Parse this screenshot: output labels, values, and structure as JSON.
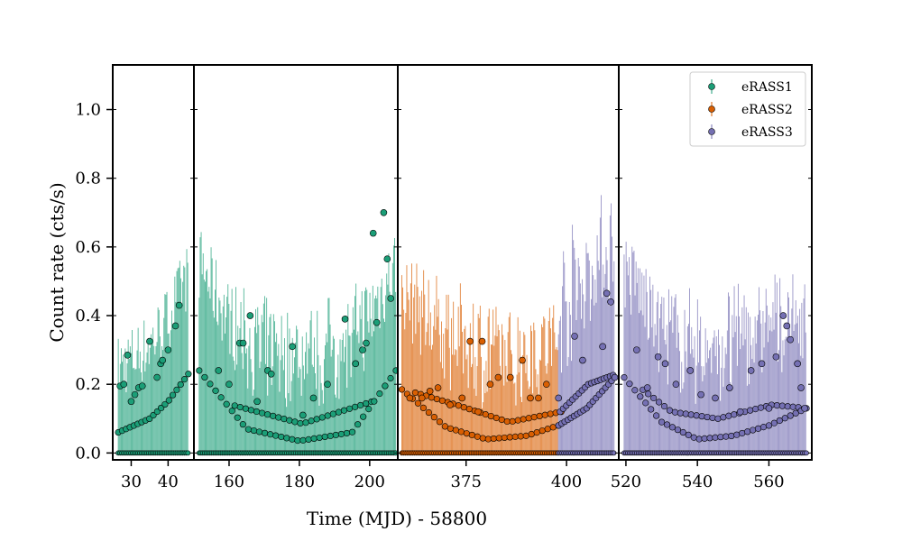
{
  "chart_data": {
    "type": "scatter",
    "xlabel": "Time (MJD) - 58800",
    "ylabel": "Count rate (cts/s)",
    "ylim": [
      -0.02,
      1.13
    ],
    "yticks": [
      0.0,
      0.2,
      0.4,
      0.6,
      0.8,
      1.0
    ],
    "ytick_labels": [
      "0.0",
      "0.2",
      "0.4",
      "0.6",
      "0.8",
      "1.0"
    ],
    "legend_position": "top-right",
    "colors": {
      "eRASS1": "#1b9e77",
      "eRASS2": "#d95f02",
      "eRASS3": "#7570b3"
    },
    "series": [
      {
        "name": "eRASS1"
      },
      {
        "name": "eRASS2"
      },
      {
        "name": "eRASS3"
      }
    ],
    "panels": [
      {
        "xlim": [
          25,
          47
        ],
        "xticks": [
          30,
          40
        ],
        "segments": [
          {
            "series": "eRASS1",
            "start": 26.5,
            "end": 45.5,
            "lower": [
              [
                26.5,
                0.06
              ],
              [
                35,
                0.1
              ],
              [
                40,
                0.15
              ],
              [
                45.5,
                0.23
              ]
            ],
            "upper": [
              [
                26.5,
                0.06
              ],
              [
                35,
                0.1
              ],
              [
                40,
                0.15
              ],
              [
                45.5,
                0.23
              ]
            ],
            "spread": 0.18
          }
        ],
        "highlights": [
          {
            "series": "eRASS1",
            "points": [
              [
                27,
                0.195
              ],
              [
                28,
                0.2
              ],
              [
                29,
                0.285
              ],
              [
                30,
                0.15
              ],
              [
                31,
                0.17
              ],
              [
                32,
                0.19
              ],
              [
                33,
                0.195
              ],
              [
                35,
                0.325
              ],
              [
                37,
                0.22
              ],
              [
                38,
                0.26
              ],
              [
                38.5,
                0.27
              ],
              [
                40,
                0.3
              ],
              [
                42,
                0.37
              ],
              [
                43,
                0.43
              ]
            ]
          }
        ]
      },
      {
        "xlim": [
          150,
          208
        ],
        "xticks": [
          160,
          180,
          200
        ],
        "segments": [
          {
            "series": "eRASS1",
            "start": 151.5,
            "end": 207.5,
            "lower": [
              [
                151.5,
                0.24
              ],
              [
                165,
                0.07
              ],
              [
                180,
                0.035
              ],
              [
                195,
                0.06
              ],
              [
                207.5,
                0.24
              ]
            ],
            "upper": [
              [
                151.5,
                0.24
              ],
              [
                160,
                0.14
              ],
              [
                180,
                0.085
              ],
              [
                200,
                0.15
              ],
              [
                207.5,
                0.24
              ]
            ],
            "spread": 0.2
          }
        ],
        "highlights": [
          {
            "series": "eRASS1",
            "points": [
              [
                157,
                0.24
              ],
              [
                160,
                0.2
              ],
              [
                163,
                0.32
              ],
              [
                164,
                0.32
              ],
              [
                166,
                0.4
              ],
              [
                168,
                0.15
              ],
              [
                171,
                0.24
              ],
              [
                172,
                0.23
              ],
              [
                178,
                0.31
              ],
              [
                181,
                0.11
              ],
              [
                184,
                0.16
              ],
              [
                188,
                0.2
              ],
              [
                193,
                0.39
              ],
              [
                196,
                0.26
              ],
              [
                198,
                0.3
              ],
              [
                199,
                0.32
              ],
              [
                201,
                0.64
              ],
              [
                202,
                0.38
              ],
              [
                204,
                0.7
              ],
              [
                205,
                0.565
              ],
              [
                206,
                0.45
              ]
            ]
          }
        ]
      },
      {
        "xlim": [
          358,
          413
        ],
        "xticks": [
          375,
          400
        ],
        "segments": [
          {
            "series": "eRASS2",
            "start": 359,
            "end": 398,
            "lower": [
              [
                359,
                0.185
              ],
              [
                370,
                0.075
              ],
              [
                380,
                0.04
              ],
              [
                390,
                0.05
              ],
              [
                398,
                0.08
              ]
            ],
            "upper": [
              [
                359,
                0.185
              ],
              [
                372,
                0.14
              ],
              [
                385,
                0.09
              ],
              [
                398,
                0.12
              ]
            ],
            "spread": 0.2
          },
          {
            "series": "eRASS3",
            "start": 398,
            "end": 412,
            "lower": [
              [
                398,
                0.08
              ],
              [
                405,
                0.13
              ],
              [
                412,
                0.22
              ]
            ],
            "upper": [
              [
                398,
                0.12
              ],
              [
                405,
                0.2
              ],
              [
                412,
                0.23
              ]
            ],
            "spread": 0.3
          }
        ],
        "highlights": [
          {
            "series": "eRASS2",
            "points": [
              [
                361,
                0.16
              ],
              [
                364,
                0.16
              ],
              [
                366,
                0.18
              ],
              [
                368,
                0.19
              ],
              [
                371,
                0.14
              ],
              [
                374,
                0.16
              ],
              [
                376,
                0.325
              ],
              [
                378,
                0.12
              ],
              [
                379,
                0.325
              ],
              [
                381,
                0.2
              ],
              [
                383,
                0.22
              ],
              [
                386,
                0.22
              ],
              [
                389,
                0.27
              ],
              [
                391,
                0.16
              ],
              [
                393,
                0.16
              ],
              [
                395,
                0.2
              ]
            ]
          },
          {
            "series": "eRASS3",
            "points": [
              [
                398,
                0.16
              ],
              [
                402,
                0.34
              ],
              [
                404,
                0.27
              ],
              [
                409,
                0.31
              ],
              [
                410,
                0.465
              ],
              [
                411,
                0.44
              ],
              [
                412,
                0.22
              ]
            ]
          }
        ]
      },
      {
        "xlim": [
          518,
          572
        ],
        "xticks": [
          520,
          540,
          560
        ],
        "segments": [
          {
            "series": "eRASS3",
            "start": 519.5,
            "end": 570.5,
            "lower": [
              [
                519.5,
                0.22
              ],
              [
                530,
                0.09
              ],
              [
                540,
                0.04
              ],
              [
                550,
                0.05
              ],
              [
                560,
                0.08
              ],
              [
                570.5,
                0.13
              ]
            ],
            "upper": [
              [
                519.5,
                0.22
              ],
              [
                532,
                0.12
              ],
              [
                545,
                0.1
              ],
              [
                560,
                0.14
              ],
              [
                570.5,
                0.13
              ]
            ],
            "spread": 0.22
          }
        ],
        "highlights": [
          {
            "series": "eRASS3",
            "points": [
              [
                523,
                0.3
              ],
              [
                526,
                0.19
              ],
              [
                529,
                0.28
              ],
              [
                531,
                0.26
              ],
              [
                534,
                0.2
              ],
              [
                538,
                0.24
              ],
              [
                541,
                0.17
              ],
              [
                545,
                0.16
              ],
              [
                549,
                0.19
              ],
              [
                552,
                0.12
              ],
              [
                555,
                0.24
              ],
              [
                558,
                0.26
              ],
              [
                560,
                0.13
              ],
              [
                562,
                0.28
              ],
              [
                564,
                0.4
              ],
              [
                565,
                0.37
              ],
              [
                566,
                0.33
              ],
              [
                568,
                0.26
              ],
              [
                569,
                0.19
              ],
              [
                570,
                0.13
              ]
            ]
          }
        ]
      }
    ]
  }
}
